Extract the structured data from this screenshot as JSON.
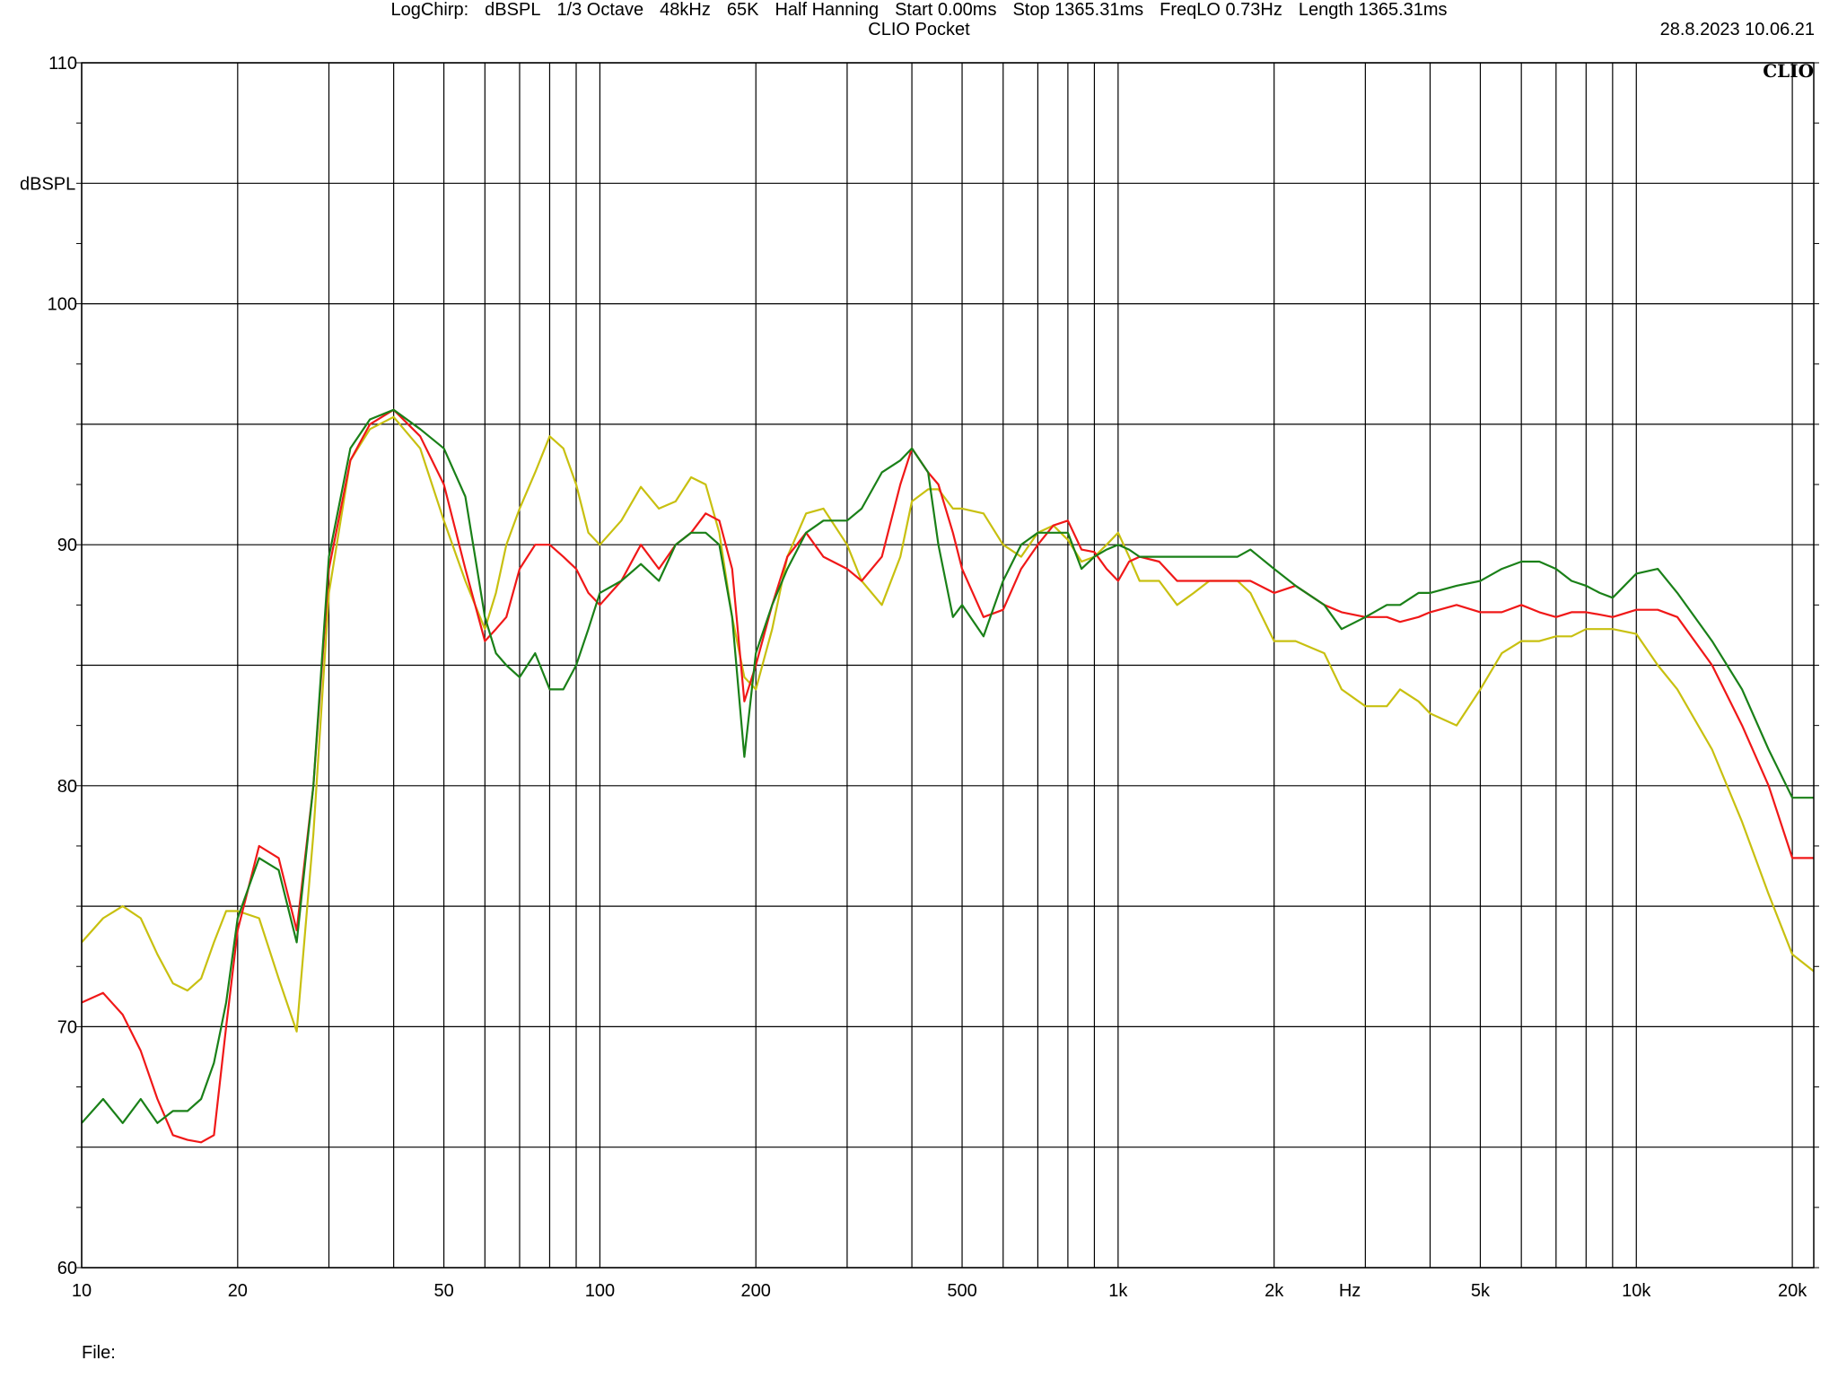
{
  "title": "CLIO Pocket",
  "timestamp": "28.8.2023 10.06.21",
  "brand": "CLIO",
  "footer": {
    "items": [
      "LogChirp:",
      "dBSPL",
      "1/3 Octave",
      "48kHz",
      "65K",
      "Half Hanning",
      "Start 0.00ms",
      "Stop 1365.31ms",
      "FreqLO 0.73Hz",
      "Length 1365.31ms"
    ]
  },
  "file_label": "File:",
  "chart_data": {
    "type": "line",
    "title": "CLIO Pocket",
    "xlabel": "Hz",
    "ylabel": "dBSPL",
    "xscale": "log",
    "xlim": [
      10,
      22000
    ],
    "ylim": [
      60,
      110
    ],
    "grid": true,
    "x_ticks": [
      {
        "v": 10,
        "label": "10"
      },
      {
        "v": 20,
        "label": "20"
      },
      {
        "v": 50,
        "label": "50"
      },
      {
        "v": 100,
        "label": "100"
      },
      {
        "v": 200,
        "label": "200"
      },
      {
        "v": 500,
        "label": "500"
      },
      {
        "v": 1000,
        "label": "1k"
      },
      {
        "v": 2000,
        "label": "2k"
      },
      {
        "v": 5000,
        "label": "5k"
      },
      {
        "v": 10000,
        "label": "10k"
      },
      {
        "v": 20000,
        "label": "20k"
      }
    ],
    "x_unit_label": {
      "v": 2800,
      "label": "Hz"
    },
    "y_ticks": [
      {
        "v": 60,
        "label": "60"
      },
      {
        "v": 70,
        "label": "70"
      },
      {
        "v": 80,
        "label": "80"
      },
      {
        "v": 90,
        "label": "90"
      },
      {
        "v": 100,
        "label": "100"
      },
      {
        "v": 110,
        "label": "110"
      }
    ],
    "series": [
      {
        "color": "#c8c010",
        "x": [
          10,
          11,
          12,
          13,
          14,
          15,
          16,
          17,
          18,
          19,
          20,
          22,
          24,
          26,
          28,
          30,
          33,
          36,
          40,
          45,
          50,
          55,
          60,
          63,
          66,
          70,
          75,
          80,
          85,
          90,
          95,
          100,
          110,
          120,
          130,
          140,
          150,
          160,
          170,
          180,
          190,
          200,
          215,
          230,
          250,
          270,
          300,
          320,
          350,
          380,
          400,
          430,
          450,
          480,
          500,
          550,
          600,
          650,
          700,
          750,
          800,
          850,
          900,
          950,
          1000,
          1050,
          1100,
          1200,
          1300,
          1400,
          1500,
          1600,
          1700,
          1800,
          2000,
          2200,
          2500,
          2700,
          3000,
          3300,
          3500,
          3800,
          4000,
          4500,
          5000,
          5500,
          6000,
          6500,
          7000,
          7500,
          8000,
          8500,
          9000,
          10000,
          11000,
          12000,
          14000,
          16000,
          18000,
          20000,
          22000
        ],
        "y": [
          73.5,
          74.5,
          75,
          74.5,
          73,
          71.8,
          71.5,
          72,
          73.5,
          74.8,
          74.8,
          74.5,
          72,
          69.8,
          78,
          88,
          93.5,
          94.8,
          95.3,
          94,
          91,
          88.5,
          86.5,
          88,
          90,
          91.5,
          93,
          94.5,
          94,
          92.5,
          90.5,
          90,
          91,
          92.4,
          91.5,
          91.8,
          92.8,
          92.5,
          90.5,
          87,
          84.5,
          84,
          86.5,
          89.5,
          91.3,
          91.5,
          90,
          88.5,
          87.5,
          89.5,
          91.8,
          92.3,
          92.3,
          91.5,
          91.5,
          91.3,
          90,
          89.5,
          90.5,
          90.8,
          90.2,
          89.3,
          89.5,
          90,
          90.5,
          89.5,
          88.5,
          88.5,
          87.5,
          88,
          88.5,
          88.5,
          88.5,
          88,
          86,
          86,
          85.5,
          84,
          83.3,
          83.3,
          84,
          83.5,
          83,
          82.5,
          84,
          85.5,
          86,
          86,
          86.2,
          86.2,
          86.5,
          86.5,
          86.5,
          86.3,
          85,
          84,
          81.5,
          78.5,
          75.5,
          73,
          72.3
        ]
      },
      {
        "color": "#f01818",
        "x": [
          10,
          11,
          12,
          13,
          14,
          15,
          16,
          17,
          18,
          19,
          20,
          22,
          24,
          26,
          28,
          30,
          33,
          36,
          40,
          45,
          50,
          55,
          60,
          63,
          66,
          70,
          75,
          80,
          85,
          90,
          95,
          100,
          110,
          120,
          130,
          140,
          150,
          160,
          170,
          180,
          190,
          200,
          215,
          230,
          250,
          270,
          300,
          320,
          350,
          380,
          400,
          430,
          450,
          480,
          500,
          550,
          600,
          650,
          700,
          750,
          800,
          850,
          900,
          950,
          1000,
          1050,
          1100,
          1200,
          1300,
          1400,
          1500,
          1600,
          1700,
          1800,
          2000,
          2200,
          2500,
          2700,
          3000,
          3300,
          3500,
          3800,
          4000,
          4500,
          5000,
          5500,
          6000,
          6500,
          7000,
          7500,
          8000,
          8500,
          9000,
          10000,
          11000,
          12000,
          14000,
          16000,
          18000,
          20000,
          22000
        ],
        "y": [
          71,
          71.4,
          70.5,
          69,
          67,
          65.5,
          65.3,
          65.2,
          65.5,
          70,
          74,
          77.5,
          77,
          74,
          80,
          89,
          93.5,
          95,
          95.6,
          94.5,
          92.5,
          89,
          86,
          86.5,
          87,
          89,
          90,
          90,
          89.5,
          89,
          88,
          87.5,
          88.5,
          90,
          89,
          90,
          90.5,
          91.3,
          91,
          89,
          83.5,
          85,
          87.5,
          89.5,
          90.5,
          89.5,
          89,
          88.5,
          89.5,
          92.5,
          94,
          93,
          92.5,
          90.5,
          89,
          87,
          87.3,
          89,
          90,
          90.8,
          91,
          89.8,
          89.7,
          89,
          88.5,
          89.3,
          89.5,
          89.3,
          88.5,
          88.5,
          88.5,
          88.5,
          88.5,
          88.5,
          88,
          88.3,
          87.5,
          87.2,
          87,
          87,
          86.8,
          87,
          87.2,
          87.5,
          87.2,
          87.2,
          87.5,
          87.2,
          87,
          87.2,
          87.2,
          87.1,
          87,
          87.3,
          87.3,
          87,
          85,
          82.5,
          80,
          77,
          77
        ]
      },
      {
        "color": "#1a8018",
        "x": [
          10,
          11,
          12,
          13,
          14,
          15,
          16,
          17,
          18,
          19,
          20,
          22,
          24,
          26,
          28,
          30,
          33,
          36,
          40,
          45,
          50,
          55,
          60,
          63,
          66,
          70,
          75,
          80,
          85,
          90,
          95,
          100,
          110,
          120,
          130,
          140,
          150,
          160,
          170,
          180,
          190,
          200,
          215,
          230,
          250,
          270,
          300,
          320,
          350,
          380,
          400,
          430,
          450,
          480,
          500,
          550,
          600,
          650,
          700,
          750,
          800,
          850,
          900,
          950,
          1000,
          1050,
          1100,
          1200,
          1300,
          1400,
          1500,
          1600,
          1700,
          1800,
          2000,
          2200,
          2500,
          2700,
          3000,
          3300,
          3500,
          3800,
          4000,
          4500,
          5000,
          5500,
          6000,
          6500,
          7000,
          7500,
          8000,
          8500,
          9000,
          10000,
          11000,
          12000,
          14000,
          16000,
          18000,
          20000,
          22000
        ],
        "y": [
          66,
          67,
          66,
          67,
          66,
          66.5,
          66.5,
          67,
          68.5,
          71,
          74.5,
          77,
          76.5,
          73.5,
          80,
          89.5,
          94,
          95.2,
          95.6,
          94.8,
          94,
          92,
          87,
          85.5,
          85,
          84.5,
          85.5,
          84,
          84,
          85,
          86.5,
          88,
          88.5,
          89.2,
          88.5,
          90,
          90.5,
          90.5,
          90,
          87,
          81.2,
          85.5,
          87.5,
          89,
          90.5,
          91,
          91,
          91.5,
          93,
          93.5,
          94,
          93,
          90,
          87,
          87.5,
          86.2,
          88.5,
          90,
          90.5,
          90.5,
          90.5,
          89,
          89.5,
          89.8,
          90,
          89.8,
          89.5,
          89.5,
          89.5,
          89.5,
          89.5,
          89.5,
          89.5,
          89.8,
          89,
          88.3,
          87.5,
          86.5,
          87,
          87.5,
          87.5,
          88,
          88,
          88.3,
          88.5,
          89,
          89.3,
          89.3,
          89,
          88.5,
          88.3,
          88,
          87.8,
          88.8,
          89,
          88,
          86,
          84,
          81.5,
          79.5,
          79.5
        ]
      }
    ]
  }
}
